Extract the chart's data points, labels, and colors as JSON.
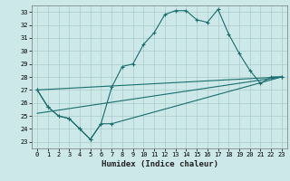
{
  "xlabel": "Humidex (Indice chaleur)",
  "bg_color": "#cce8e8",
  "grid_color": "#aacccc",
  "line_color": "#1a6e6e",
  "xlim": [
    -0.5,
    23.5
  ],
  "ylim": [
    22.5,
    33.5
  ],
  "xticks": [
    0,
    1,
    2,
    3,
    4,
    5,
    6,
    7,
    8,
    9,
    10,
    11,
    12,
    13,
    14,
    15,
    16,
    17,
    18,
    19,
    20,
    21,
    22,
    23
  ],
  "yticks": [
    23,
    24,
    25,
    26,
    27,
    28,
    29,
    30,
    31,
    32,
    33
  ],
  "series1": [
    [
      0,
      27.0
    ],
    [
      1,
      25.7
    ],
    [
      2,
      25.0
    ],
    [
      3,
      24.8
    ],
    [
      4,
      24.0
    ],
    [
      5,
      23.2
    ],
    [
      6,
      24.4
    ],
    [
      7,
      27.2
    ],
    [
      8,
      28.8
    ],
    [
      9,
      29.0
    ],
    [
      10,
      30.5
    ],
    [
      11,
      31.4
    ],
    [
      12,
      32.8
    ],
    [
      13,
      33.1
    ],
    [
      14,
      33.1
    ],
    [
      15,
      32.4
    ],
    [
      16,
      32.2
    ],
    [
      17,
      33.2
    ],
    [
      18,
      31.3
    ],
    [
      19,
      29.8
    ],
    [
      20,
      28.5
    ],
    [
      21,
      27.5
    ],
    [
      22,
      28.0
    ],
    [
      23,
      28.0
    ]
  ],
  "series2": [
    [
      0,
      27.0
    ],
    [
      1,
      25.7
    ],
    [
      2,
      25.0
    ],
    [
      3,
      24.8
    ],
    [
      4,
      24.0
    ],
    [
      5,
      23.2
    ],
    [
      6,
      24.4
    ],
    [
      7,
      24.4
    ],
    [
      23,
      28.0
    ]
  ],
  "line3": [
    [
      0,
      27.0
    ],
    [
      23,
      28.0
    ]
  ],
  "line4": [
    [
      0,
      25.2
    ],
    [
      23,
      28.0
    ]
  ]
}
